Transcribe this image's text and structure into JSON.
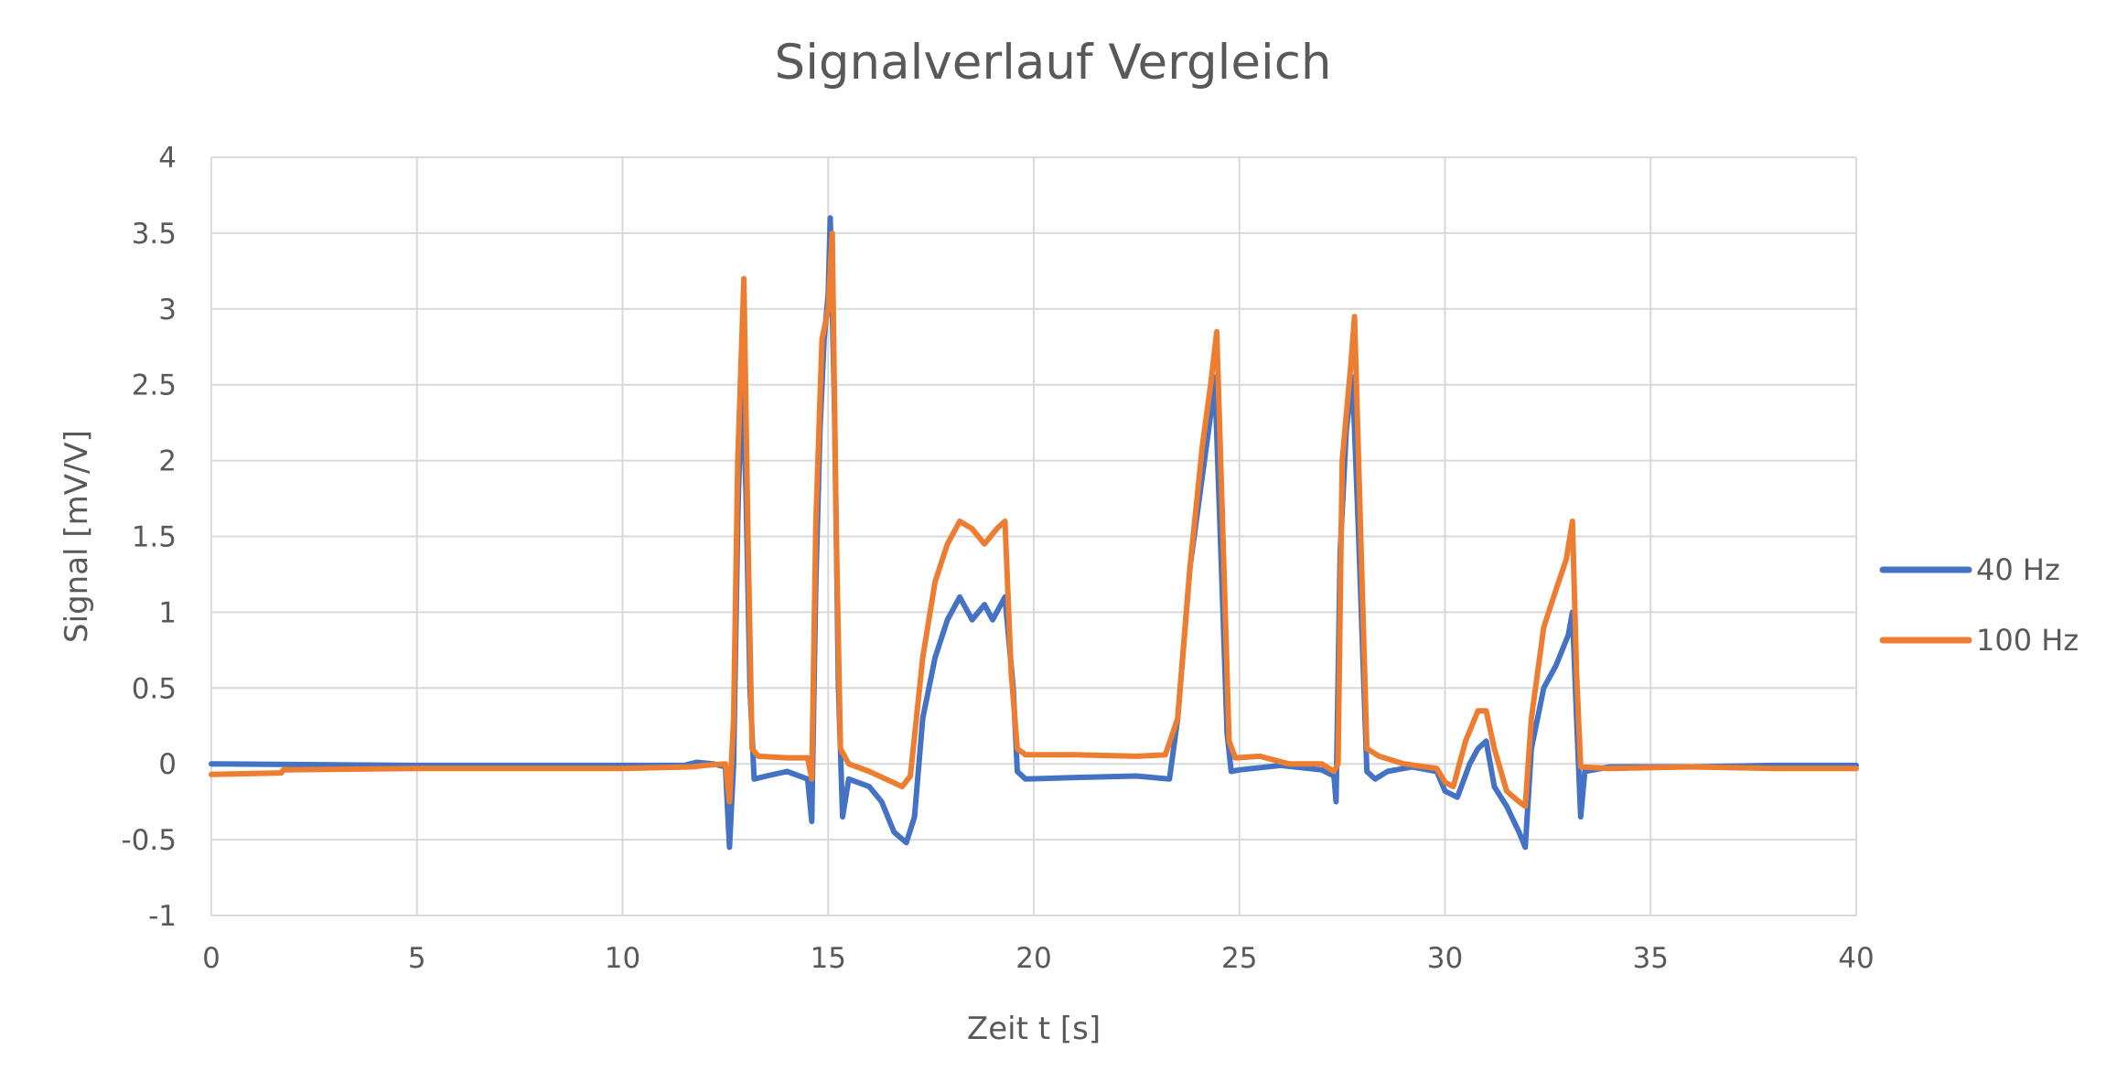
{
  "chart_data": {
    "type": "line",
    "title": "Signalverlauf Vergleich",
    "xlabel": "Zeit t [s]",
    "ylabel": "Signal [mV/V]",
    "xlim": [
      0,
      40
    ],
    "ylim": [
      -1,
      4
    ],
    "x_ticks": [
      "0",
      "5",
      "10",
      "15",
      "20",
      "25",
      "30",
      "35",
      "40"
    ],
    "y_ticks": [
      "-1",
      "-0.5",
      "0",
      "0.5",
      "1",
      "1.5",
      "2",
      "2.5",
      "3",
      "3.5",
      "4"
    ],
    "grid": true,
    "legend_position": "right",
    "series": [
      {
        "name": "40 Hz",
        "color": "#4472C4",
        "points": [
          [
            0,
            0.0
          ],
          [
            5,
            -0.01
          ],
          [
            10,
            -0.01
          ],
          [
            11.5,
            -0.01
          ],
          [
            11.8,
            0.01
          ],
          [
            12.2,
            0.0
          ],
          [
            12.5,
            -0.02
          ],
          [
            12.6,
            -0.55
          ],
          [
            12.7,
            0.0
          ],
          [
            12.8,
            1.6
          ],
          [
            12.9,
            2.6
          ],
          [
            13.0,
            1.8
          ],
          [
            13.1,
            0.5
          ],
          [
            13.2,
            -0.1
          ],
          [
            13.5,
            -0.08
          ],
          [
            14.0,
            -0.05
          ],
          [
            14.5,
            -0.1
          ],
          [
            14.6,
            -0.38
          ],
          [
            14.7,
            1.2
          ],
          [
            14.8,
            2.2
          ],
          [
            14.9,
            2.8
          ],
          [
            15.0,
            3.1
          ],
          [
            15.05,
            3.6
          ],
          [
            15.15,
            2.4
          ],
          [
            15.25,
            0.5
          ],
          [
            15.35,
            -0.35
          ],
          [
            15.5,
            -0.1
          ],
          [
            16.0,
            -0.15
          ],
          [
            16.3,
            -0.25
          ],
          [
            16.6,
            -0.45
          ],
          [
            16.9,
            -0.52
          ],
          [
            17.1,
            -0.35
          ],
          [
            17.3,
            0.3
          ],
          [
            17.6,
            0.7
          ],
          [
            17.9,
            0.95
          ],
          [
            18.2,
            1.1
          ],
          [
            18.5,
            0.95
          ],
          [
            18.8,
            1.05
          ],
          [
            19.0,
            0.95
          ],
          [
            19.3,
            1.1
          ],
          [
            19.5,
            0.5
          ],
          [
            19.6,
            -0.05
          ],
          [
            19.8,
            -0.1
          ],
          [
            21.0,
            -0.09
          ],
          [
            22.5,
            -0.08
          ],
          [
            23.3,
            -0.1
          ],
          [
            23.5,
            0.3
          ],
          [
            23.8,
            1.3
          ],
          [
            24.1,
            1.9
          ],
          [
            24.3,
            2.3
          ],
          [
            24.4,
            2.55
          ],
          [
            24.55,
            1.4
          ],
          [
            24.7,
            0.2
          ],
          [
            24.8,
            -0.05
          ],
          [
            25.0,
            -0.04
          ],
          [
            26.0,
            -0.01
          ],
          [
            27.0,
            -0.04
          ],
          [
            27.3,
            -0.08
          ],
          [
            27.35,
            -0.25
          ],
          [
            27.45,
            1.4
          ],
          [
            27.6,
            2.2
          ],
          [
            27.75,
            2.55
          ],
          [
            27.9,
            1.5
          ],
          [
            28.1,
            -0.05
          ],
          [
            28.3,
            -0.1
          ],
          [
            28.6,
            -0.05
          ],
          [
            29.2,
            -0.02
          ],
          [
            29.8,
            -0.05
          ],
          [
            30.0,
            -0.18
          ],
          [
            30.3,
            -0.22
          ],
          [
            30.6,
            0.0
          ],
          [
            30.8,
            0.1
          ],
          [
            31.0,
            0.15
          ],
          [
            31.2,
            -0.15
          ],
          [
            31.5,
            -0.28
          ],
          [
            31.8,
            -0.45
          ],
          [
            31.95,
            -0.55
          ],
          [
            32.1,
            0.1
          ],
          [
            32.4,
            0.5
          ],
          [
            32.7,
            0.65
          ],
          [
            33.0,
            0.85
          ],
          [
            33.1,
            1.0
          ],
          [
            33.2,
            0.3
          ],
          [
            33.3,
            -0.35
          ],
          [
            33.4,
            -0.05
          ],
          [
            34.0,
            -0.02
          ],
          [
            36.0,
            -0.02
          ],
          [
            38.0,
            -0.01
          ],
          [
            40.0,
            -0.01
          ]
        ]
      },
      {
        "name": "100 Hz",
        "color": "#ED7D31",
        "points": [
          [
            0,
            -0.07
          ],
          [
            1.7,
            -0.06
          ],
          [
            1.75,
            -0.04
          ],
          [
            5,
            -0.03
          ],
          [
            10,
            -0.03
          ],
          [
            11.7,
            -0.02
          ],
          [
            12.0,
            -0.01
          ],
          [
            12.5,
            0.0
          ],
          [
            12.6,
            -0.25
          ],
          [
            12.7,
            0.3
          ],
          [
            12.8,
            2.0
          ],
          [
            12.95,
            3.2
          ],
          [
            13.05,
            1.5
          ],
          [
            13.15,
            0.1
          ],
          [
            13.3,
            0.05
          ],
          [
            14.0,
            0.04
          ],
          [
            14.5,
            0.04
          ],
          [
            14.6,
            -0.1
          ],
          [
            14.7,
            1.6
          ],
          [
            14.85,
            2.8
          ],
          [
            15.0,
            3.0
          ],
          [
            15.1,
            3.5
          ],
          [
            15.2,
            1.5
          ],
          [
            15.3,
            0.1
          ],
          [
            15.5,
            0.0
          ],
          [
            16.0,
            -0.05
          ],
          [
            16.4,
            -0.1
          ],
          [
            16.8,
            -0.15
          ],
          [
            17.0,
            -0.08
          ],
          [
            17.3,
            0.7
          ],
          [
            17.6,
            1.2
          ],
          [
            17.9,
            1.45
          ],
          [
            18.2,
            1.6
          ],
          [
            18.5,
            1.55
          ],
          [
            18.8,
            1.45
          ],
          [
            19.1,
            1.55
          ],
          [
            19.3,
            1.6
          ],
          [
            19.45,
            0.6
          ],
          [
            19.6,
            0.1
          ],
          [
            19.8,
            0.06
          ],
          [
            21.0,
            0.06
          ],
          [
            22.5,
            0.05
          ],
          [
            23.2,
            0.06
          ],
          [
            23.5,
            0.3
          ],
          [
            23.8,
            1.3
          ],
          [
            24.1,
            2.1
          ],
          [
            24.3,
            2.5
          ],
          [
            24.45,
            2.85
          ],
          [
            24.6,
            1.5
          ],
          [
            24.75,
            0.15
          ],
          [
            24.9,
            0.04
          ],
          [
            25.5,
            0.05
          ],
          [
            26.2,
            0.0
          ],
          [
            27.0,
            0.0
          ],
          [
            27.3,
            -0.05
          ],
          [
            27.4,
            0.0
          ],
          [
            27.5,
            2.0
          ],
          [
            27.7,
            2.6
          ],
          [
            27.8,
            2.95
          ],
          [
            27.95,
            1.5
          ],
          [
            28.1,
            0.1
          ],
          [
            28.4,
            0.05
          ],
          [
            29.0,
            0.0
          ],
          [
            29.8,
            -0.03
          ],
          [
            30.0,
            -0.12
          ],
          [
            30.2,
            -0.15
          ],
          [
            30.5,
            0.15
          ],
          [
            30.8,
            0.35
          ],
          [
            31.0,
            0.35
          ],
          [
            31.2,
            0.1
          ],
          [
            31.5,
            -0.18
          ],
          [
            31.8,
            -0.25
          ],
          [
            31.95,
            -0.28
          ],
          [
            32.1,
            0.3
          ],
          [
            32.4,
            0.9
          ],
          [
            32.7,
            1.15
          ],
          [
            32.95,
            1.35
          ],
          [
            33.1,
            1.6
          ],
          [
            33.2,
            0.6
          ],
          [
            33.3,
            -0.02
          ],
          [
            34.0,
            -0.03
          ],
          [
            36.0,
            -0.02
          ],
          [
            38.0,
            -0.03
          ],
          [
            40.0,
            -0.03
          ]
        ]
      }
    ]
  }
}
